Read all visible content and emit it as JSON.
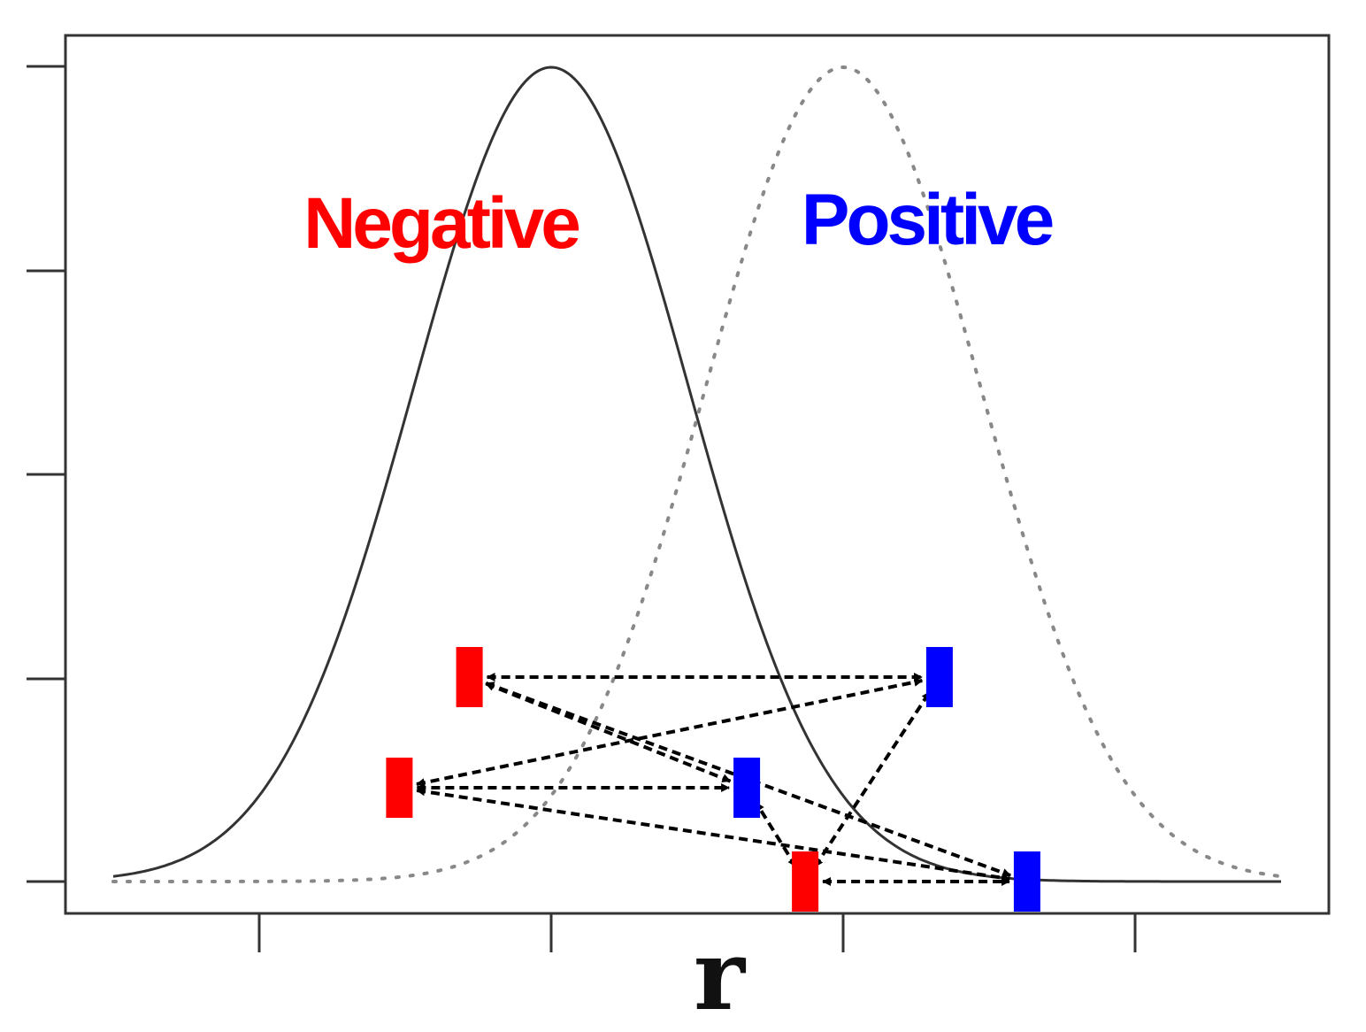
{
  "labels": {
    "negative": "Negative",
    "positive": "Positive",
    "x_axis": "r"
  },
  "colors": {
    "negative": "#ff0000",
    "positive": "#0000ff",
    "curve": "#333333",
    "arrow": "#000000"
  },
  "curves": [
    {
      "name": "negative",
      "style": "solid",
      "mean": 0,
      "sd": 1
    },
    {
      "name": "positive",
      "style": "dotted",
      "mean": 1,
      "sd": 1
    }
  ],
  "samples": {
    "negative": [
      {
        "id": "n1",
        "r": -0.28,
        "level": 3
      },
      {
        "id": "n2",
        "r": -0.52,
        "level": 2
      },
      {
        "id": "n3",
        "r": 0.87,
        "level": 0
      }
    ],
    "positive": [
      {
        "id": "p1",
        "r": 1.33,
        "level": 3
      },
      {
        "id": "p2",
        "r": 0.67,
        "level": 2
      },
      {
        "id": "p3",
        "r": 1.63,
        "level": 0
      }
    ]
  },
  "pairs": [
    [
      "n1",
      "p1"
    ],
    [
      "n1",
      "p2"
    ],
    [
      "n1",
      "p3"
    ],
    [
      "n2",
      "p1"
    ],
    [
      "n2",
      "p2"
    ],
    [
      "n2",
      "p3"
    ],
    [
      "n3",
      "p1"
    ],
    [
      "n3",
      "p2"
    ],
    [
      "n3",
      "p3"
    ]
  ]
}
